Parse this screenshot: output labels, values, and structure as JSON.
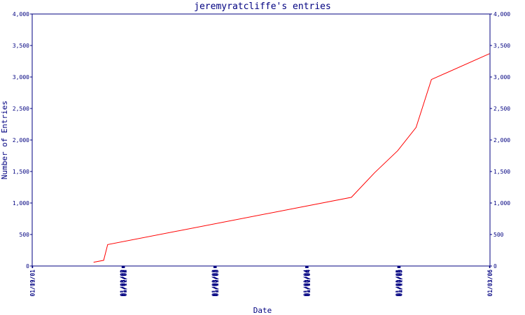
{
  "chart_data": {
    "type": "line",
    "title": "jeremyratcliffe's entries",
    "xlabel": "Date",
    "ylabel": "Number of Entries",
    "ylim": [
      0,
      4000
    ],
    "y_ticks": [
      "0",
      "500",
      "1,000",
      "1,500",
      "2,000",
      "2,500",
      "3,000",
      "3,500",
      "4,000"
    ],
    "y_tick_values": [
      0,
      500,
      1000,
      1500,
      2000,
      2500,
      3000,
      3500,
      4000
    ],
    "x_ticks": [
      "01/09/01",
      "01/11/01",
      "01/01/02",
      "01/03/02",
      "01/05/02",
      "01/07/02",
      "01/09/02",
      "01/11/02",
      "01/01/03",
      "01/03/03",
      "01/05/03",
      "01/07/03",
      "01/09/03",
      "01/11/03",
      "01/01/04",
      "01/03/04",
      "01/05/04",
      "01/07/04",
      "01/09/04",
      "01/11/04",
      "01/01/05",
      "01/03/05",
      "01/05/05",
      "01/07/05",
      "01/09/05",
      "01/11/05",
      "01/01/06",
      "01/03/06"
    ],
    "grid": false,
    "colors": {
      "axis": "#000080",
      "line": "#ff0000"
    },
    "series": [
      {
        "x": [
          "2001-09-10",
          "2001-10-20",
          "2001-11-05",
          "2004-07-01",
          "2004-10-01",
          "2005-01-01",
          "2005-03-15",
          "2005-05-15",
          "2006-01-01"
        ],
        "values": [
          60,
          90,
          340,
          1090,
          1480,
          1830,
          2200,
          2960,
          3370
        ]
      }
    ]
  }
}
